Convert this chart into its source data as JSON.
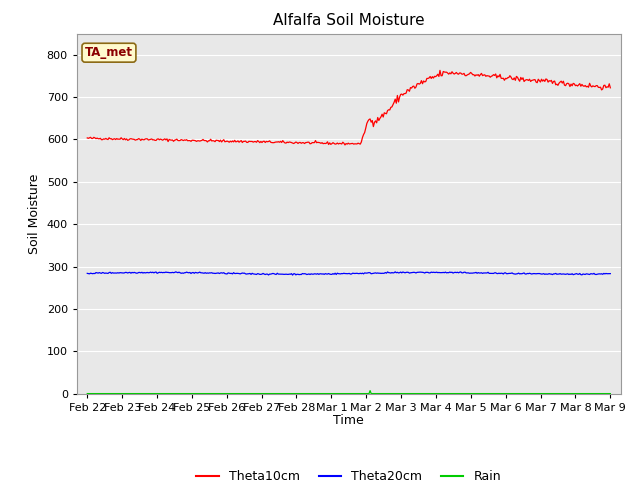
{
  "title": "Alfalfa Soil Moisture",
  "xlabel": "Time",
  "ylabel": "Soil Moisture",
  "ylim": [
    0,
    850
  ],
  "yticks": [
    0,
    100,
    200,
    300,
    400,
    500,
    600,
    700,
    800
  ],
  "annotation_text": "TA_met",
  "annotation_color": "#8B0000",
  "annotation_bg": "#FFFACD",
  "annotation_border": "#8B6914",
  "bg_color": "#E8E8E8",
  "line_colors": {
    "theta10": "#FF0000",
    "theta20": "#0000FF",
    "rain": "#00CC00"
  },
  "legend_labels": [
    "Theta10cm",
    "Theta20cm",
    "Rain"
  ],
  "x_labels": [
    "Feb 22",
    "Feb 23",
    "Feb 24",
    "Feb 25",
    "Feb 26",
    "Feb 27",
    "Feb 28",
    "Mar 1",
    "Mar 2",
    "Mar 3",
    "Mar 4",
    "Mar 5",
    "Mar 6",
    "Mar 7",
    "Mar 8",
    "Mar 9"
  ],
  "figsize": [
    6.4,
    4.8
  ],
  "dpi": 100
}
